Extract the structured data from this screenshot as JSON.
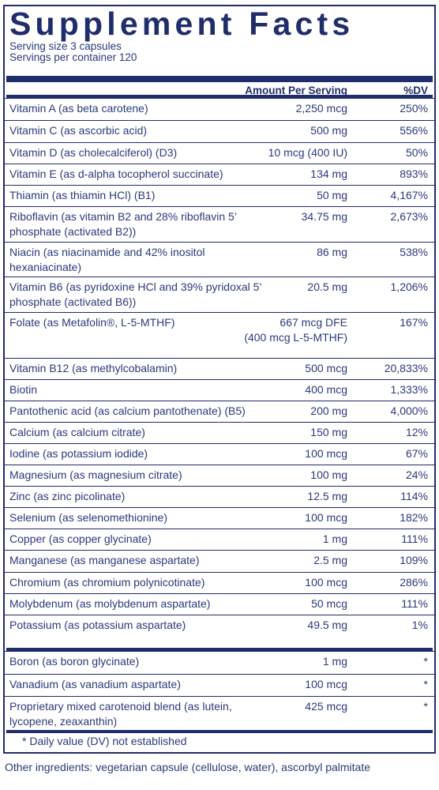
{
  "title": "Supplement Facts",
  "serving_size": "Serving size  3 capsules",
  "servings_per_container": "Servings per container  120",
  "header": {
    "amount": "Amount Per Serving",
    "dv": "%DV"
  },
  "rows": [
    {
      "name": "Vitamin A (as beta carotene)",
      "amount": "2,250 mcg",
      "dv": "250%"
    },
    {
      "name": "Vitamin C (as ascorbic acid)",
      "amount": "500 mg",
      "dv": "556%"
    },
    {
      "name": "Vitamin D (as cholecalciferol) (D3)",
      "amount": "10 mcg (400 IU)",
      "dv": "50%"
    },
    {
      "name": "Vitamin E (as d-alpha tocopherol succinate)",
      "amount": "134 mg",
      "dv": "893%"
    },
    {
      "name": "Thiamin (as thiamin HCl) (B1)",
      "amount": "50 mg",
      "dv": "4,167%"
    },
    {
      "name": "Riboflavin (as vitamin B2 and 28% riboflavin 5’ phosphate (activated B2))",
      "amount": "34.75 mg",
      "dv": "2,673%"
    },
    {
      "name": "Niacin (as niacinamide and 42% inositol hexaniacinate)",
      "amount": "86 mg",
      "dv": "538%"
    },
    {
      "name": "Vitamin B6 (as pyridoxine HCl and 39% pyridoxal 5’ phosphate (activated B6))",
      "amount": "20.5 mg",
      "dv": "1,206%"
    },
    {
      "name": "Folate (as Metafolin®, L-5-MTHF)",
      "amount": "667 mcg  DFE",
      "amount2": "(400 mcg L-5-MTHF)",
      "dv": "167%"
    },
    {
      "name": "Vitamin B12 (as methylcobalamin)",
      "amount": "500 mcg",
      "dv": "20,833%"
    },
    {
      "name": "Biotin",
      "amount": "400 mcg",
      "dv": "1,333%"
    },
    {
      "name": "Pantothenic acid (as calcium pantothenate) (B5)",
      "amount": "200 mg",
      "dv": "4,000%"
    },
    {
      "name": "Calcium (as calcium citrate)",
      "amount": "150 mg",
      "dv": "12%"
    },
    {
      "name": "Iodine (as potassium iodide)",
      "amount": "100 mcg",
      "dv": "67%"
    },
    {
      "name": "Magnesium (as magnesium citrate)",
      "amount": "100 mg",
      "dv": "24%"
    },
    {
      "name": "Zinc (as zinc picolinate)",
      "amount": "12.5 mg",
      "dv": "114%"
    },
    {
      "name": "Selenium (as selenomethionine)",
      "amount": "100 mcg",
      "dv": "182%"
    },
    {
      "name": "Copper (as copper glycinate)",
      "amount": "1 mg",
      "dv": "111%"
    },
    {
      "name": "Manganese (as manganese aspartate)",
      "amount": "2.5 mg",
      "dv": "109%"
    },
    {
      "name": "Chromium (as chromium polynicotinate)",
      "amount": "100 mcg",
      "dv": "286%"
    },
    {
      "name": "Molybdenum (as molybdenum aspartate)",
      "amount": "50 mcg",
      "dv": "111%"
    },
    {
      "name": "Potassium (as potassium aspartate)",
      "amount": "49.5 mg",
      "dv": "1%"
    },
    {
      "name": "Boron (as boron glycinate)",
      "amount": "1 mg",
      "dv": "*"
    },
    {
      "name": "Vanadium (as vanadium aspartate)",
      "amount": "100 mcg",
      "dv": "*"
    },
    {
      "name": "Proprietary mixed carotenoid blend (as lutein, lycopene, zeaxanthin)",
      "amount": "425 mcg",
      "dv": "*"
    }
  ],
  "footnote": "* Daily value (DV) not established",
  "other_ingredients": "Other ingredients: vegetarian capsule (cellulose, water), ascorbyl palmitate"
}
